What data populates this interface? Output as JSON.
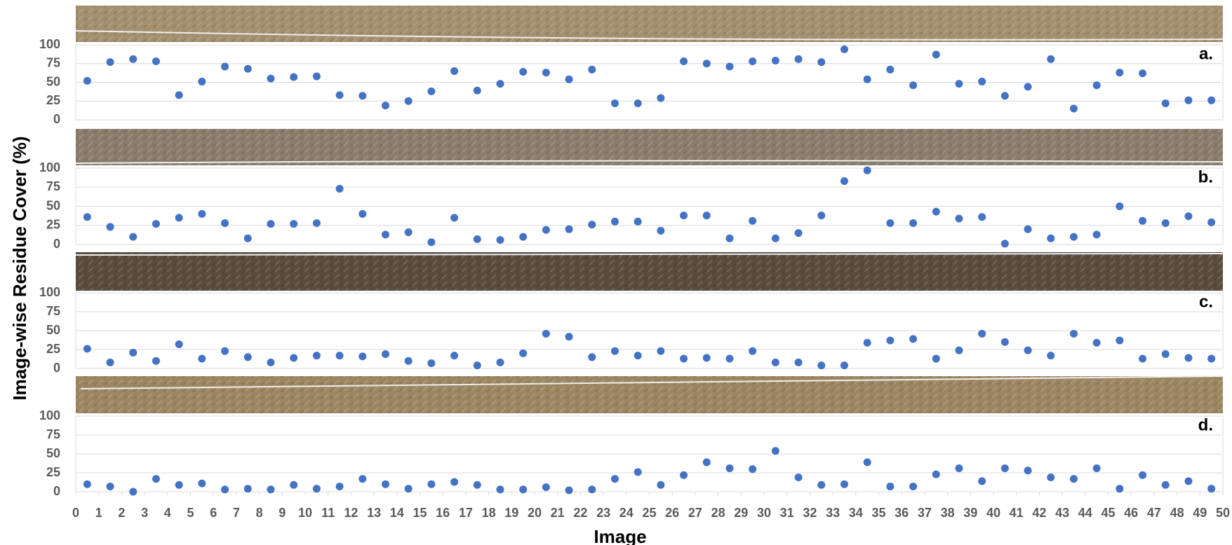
{
  "chart_data": {
    "type": "scatter",
    "y_label": "Image-wise Residue Cover (%)",
    "x_label": "Image",
    "color": "#4472c4",
    "grid": true,
    "xlim": [
      0,
      50
    ],
    "xticks": [
      0,
      1,
      2,
      3,
      4,
      5,
      6,
      7,
      8,
      9,
      10,
      11,
      12,
      13,
      14,
      15,
      16,
      17,
      18,
      19,
      20,
      21,
      22,
      23,
      24,
      25,
      26,
      27,
      28,
      29,
      30,
      31,
      32,
      33,
      34,
      35,
      36,
      37,
      38,
      39,
      40,
      41,
      42,
      43,
      44,
      45,
      46,
      47,
      48,
      49,
      50
    ],
    "x": [
      0.5,
      1.5,
      2.5,
      3.5,
      4.5,
      5.5,
      6.5,
      7.5,
      8.5,
      9.5,
      10.5,
      11.5,
      12.5,
      13.5,
      14.5,
      15.5,
      16.5,
      17.5,
      18.5,
      19.5,
      20.5,
      21.5,
      22.5,
      23.5,
      24.5,
      25.5,
      26.5,
      27.5,
      28.5,
      29.5,
      30.5,
      31.5,
      32.5,
      33.5,
      34.5,
      35.5,
      36.5,
      37.5,
      38.5,
      39.5,
      40.5,
      41.5,
      42.5,
      43.5,
      44.5,
      45.5,
      46.5,
      47.5,
      48.5,
      49.5
    ],
    "panels": [
      {
        "label": "a.",
        "ylim": [
          0,
          100
        ],
        "yticks": [
          0,
          25,
          50,
          75,
          100
        ],
        "values": [
          52,
          77,
          81,
          78,
          33,
          51,
          71,
          68,
          55,
          57,
          58,
          33,
          32,
          19,
          25,
          38,
          65,
          39,
          48,
          64,
          63,
          54,
          67,
          22,
          22,
          29,
          78,
          75,
          71,
          78,
          79,
          81,
          77,
          94,
          54,
          67,
          46,
          87,
          48,
          51,
          32,
          44,
          81,
          15,
          46,
          63,
          62,
          22,
          26,
          26
        ]
      },
      {
        "label": "b.",
        "ylim": [
          0,
          100
        ],
        "yticks": [
          0,
          25,
          50,
          75,
          100
        ],
        "values": [
          36,
          23,
          10,
          27,
          35,
          40,
          28,
          8,
          27,
          27,
          28,
          73,
          40,
          13,
          16,
          3,
          35,
          7,
          6,
          10,
          19,
          20,
          26,
          30,
          30,
          18,
          38,
          38,
          8,
          31,
          8,
          15,
          38,
          83,
          97,
          28,
          28,
          43,
          34,
          36,
          1,
          20,
          8,
          10,
          13,
          50,
          31,
          28,
          37,
          29
        ]
      },
      {
        "label": "c.",
        "ylim": [
          0,
          100
        ],
        "yticks": [
          0,
          25,
          50,
          75,
          100
        ],
        "values": [
          26,
          8,
          21,
          10,
          32,
          13,
          23,
          15,
          8,
          14,
          17,
          17,
          16,
          19,
          10,
          7,
          17,
          4,
          8,
          20,
          46,
          42,
          15,
          23,
          17,
          23,
          13,
          14,
          13,
          23,
          8,
          8,
          4,
          4,
          34,
          37,
          39,
          13,
          24,
          46,
          35,
          24,
          17,
          46,
          34,
          37,
          13,
          19,
          14,
          13
        ]
      },
      {
        "label": "d.",
        "ylim": [
          0,
          100
        ],
        "yticks": [
          0,
          25,
          50,
          75,
          100
        ],
        "values": [
          10,
          7,
          0,
          17,
          9,
          11,
          3,
          4,
          3,
          9,
          4,
          7,
          17,
          10,
          4,
          10,
          13,
          9,
          3,
          3,
          6,
          2,
          3,
          17,
          26,
          9,
          22,
          39,
          31,
          30,
          54,
          19,
          9,
          10,
          39,
          7,
          7,
          23,
          31,
          14,
          31,
          28,
          19,
          17,
          31,
          4,
          22,
          9,
          14,
          4
        ]
      }
    ]
  }
}
